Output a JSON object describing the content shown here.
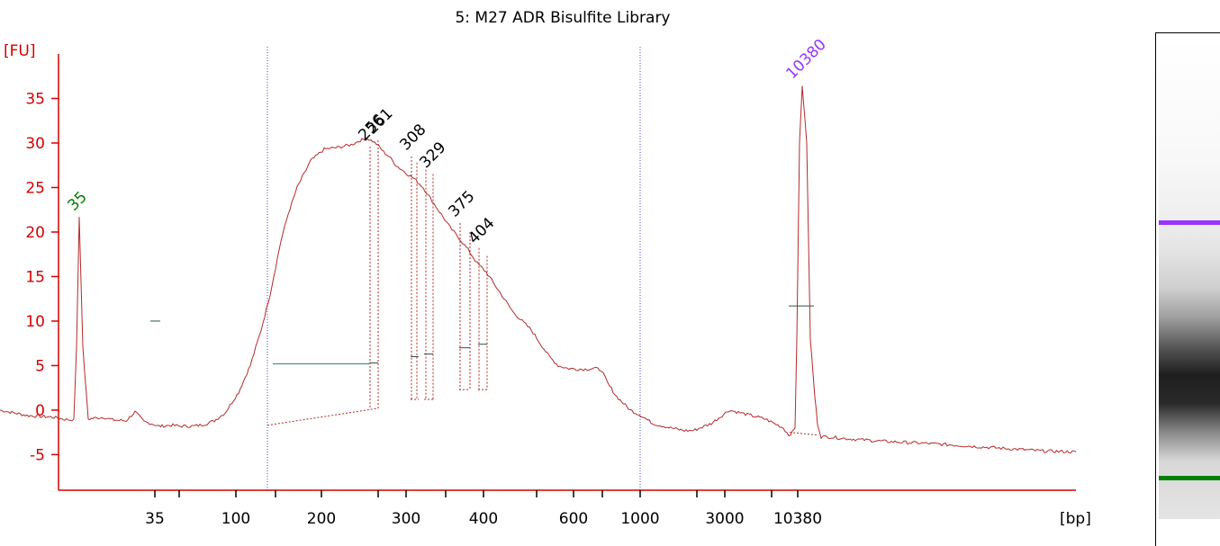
{
  "chart_data": {
    "type": "line",
    "title": "5: M27 ADR Bisulfite Library",
    "ylabel": "[FU]",
    "xlabel": "[bp]",
    "ylim": [
      -9,
      40
    ],
    "y_ticks": [
      -5,
      0,
      5,
      10,
      15,
      20,
      25,
      30,
      35
    ],
    "x_tick_labels": [
      "35",
      "100",
      "200",
      "300",
      "400",
      "600",
      "1000",
      "3000",
      "10380"
    ],
    "colors": {
      "trace": "#b52a2a",
      "axis": "#d40000",
      "lower_marker": "#008000",
      "upper_marker": "#9933ff",
      "peak_label": "#000000",
      "region_line": "#2e8b57",
      "region_boundary": "#4444cc"
    },
    "series": [
      {
        "x": [
          0,
          15,
          30,
          45,
          60,
          70,
          78,
          82,
          85,
          88,
          92,
          98,
          105,
          115,
          125,
          140,
          150,
          160,
          168,
          171,
          175,
          180,
          190,
          200,
          215,
          222,
          230,
          238,
          250,
          265,
          278,
          290,
          300,
          306,
          312,
          320,
          330,
          345,
          360,
          375,
          390,
          400,
          408,
          414,
          418,
          422,
          426,
          432,
          440,
          450,
          460,
          470,
          480,
          490,
          500,
          510,
          520,
          530,
          540,
          550,
          560,
          570,
          580,
          590,
          600,
          610,
          620,
          630,
          640,
          650,
          660,
          668,
          675,
          685,
          700,
          712,
          725,
          745,
          760,
          770,
          790,
          810,
          830,
          850,
          870,
          876,
          880,
          883,
          885,
          888,
          891,
          896,
          900,
          905,
          908,
          912,
          920,
          940,
          980,
          1040,
          1100,
          1160,
          1195
        ],
        "y": [
          0,
          -0.3,
          -0.6,
          -0.7,
          -0.8,
          -1.0,
          -1.1,
          -1.0,
          7,
          21.7,
          7,
          -1.0,
          -0.9,
          -0.8,
          -1.1,
          -1.2,
          -0.2,
          -1.3,
          -1.5,
          -1.6,
          -1.8,
          -1.8,
          -1.7,
          -1.8,
          -1.8,
          -1.7,
          -1.5,
          -1.2,
          -0.3,
          2,
          5,
          9,
          13,
          16,
          19,
          22,
          25,
          28,
          29.3,
          29.5,
          29.8,
          30.3,
          30.5,
          30.2,
          29.9,
          29.5,
          29.0,
          28.5,
          27.5,
          26.7,
          26.0,
          25.0,
          23.5,
          22.0,
          20.5,
          19.3,
          18.0,
          16.5,
          15.5,
          14.0,
          12.5,
          11.0,
          10.0,
          9.0,
          7.5,
          6.0,
          5.0,
          4.7,
          4.6,
          4.6,
          4.7,
          4.5,
          3.0,
          1.5,
          0,
          -0.6,
          -1.5,
          -2.0,
          -2.3,
          -2.3,
          -1.5,
          0,
          -0.5,
          -1.0,
          -2.0,
          -2.8,
          -2.5,
          -2.0,
          8,
          30,
          36.5,
          30,
          8,
          1.5,
          -1.5,
          -3.0,
          -3.0,
          -3.2,
          -3.5,
          -3.8,
          -4.2,
          -4.6,
          -4.7
        ],
        "x_unit": "horizontal plot position (migration scale, 0-1195)"
      }
    ],
    "peaks": [
      {
        "label": "35",
        "x": 88,
        "y": 21.7,
        "color": "lower_marker"
      },
      {
        "label": "256",
        "x": 411,
        "y": 29.6,
        "color": "peak_label"
      },
      {
        "label": "261",
        "x": 420,
        "y": 30.3,
        "color": "peak_label"
      },
      {
        "label": "308",
        "x": 457,
        "y": 28.5,
        "color": "peak_label"
      },
      {
        "label": "329",
        "x": 479,
        "y": 26.5,
        "color": "peak_label"
      },
      {
        "label": "375",
        "x": 511,
        "y": 21.0,
        "color": "peak_label"
      },
      {
        "label": "404",
        "x": 533,
        "y": 18.0,
        "color": "peak_label"
      },
      {
        "label": "10380",
        "x": 886,
        "y": 36.5,
        "color": "upper_marker"
      }
    ],
    "region_boundaries": [
      297,
      711
    ],
    "grid": false,
    "legend": "none"
  },
  "gel": {
    "upper_band_color": "#9933ff",
    "lower_band_color": "#008000"
  }
}
